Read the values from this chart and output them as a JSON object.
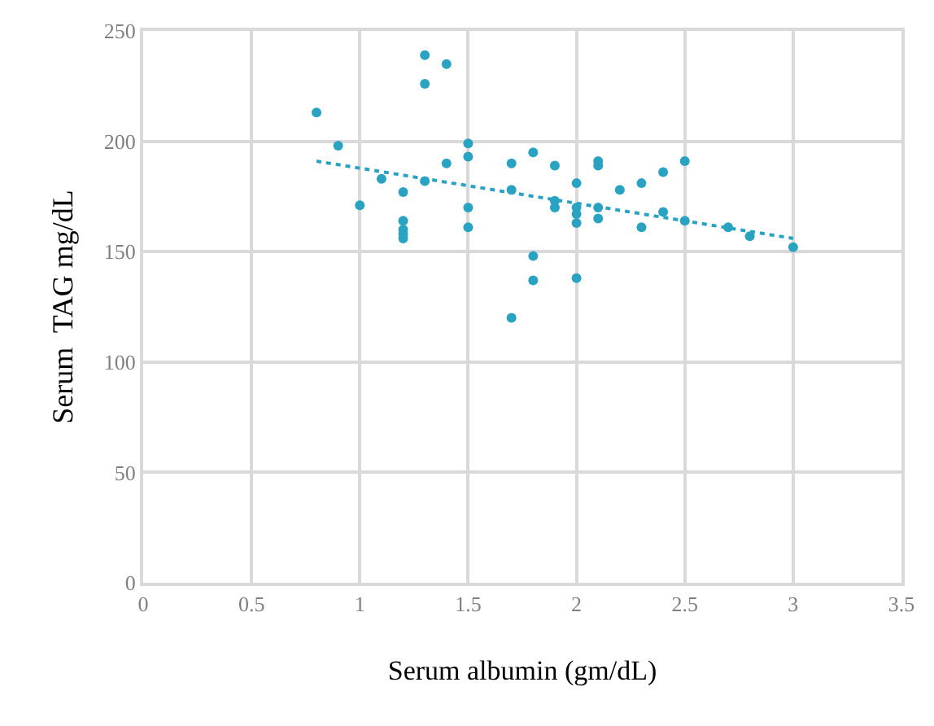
{
  "chart_data": {
    "type": "scatter",
    "xlabel": "Serum albumin (gm/dL)",
    "ylabel": "Serum  TAG mg/dL",
    "xlim": [
      0,
      3.5
    ],
    "xticks": [
      0,
      0.5,
      1,
      1.5,
      2,
      2.5,
      3,
      3.5
    ],
    "ylim": [
      0,
      250
    ],
    "yticks": [
      0,
      50,
      100,
      150,
      200,
      250
    ],
    "grid": true,
    "series": [
      {
        "color": "#2aa3c2",
        "marker": "circle",
        "x": [
          0.8,
          0.9,
          1.0,
          1.1,
          1.2,
          1.2,
          1.2,
          1.2,
          1.2,
          1.3,
          1.3,
          1.3,
          1.4,
          1.4,
          1.5,
          1.5,
          1.5,
          1.5,
          1.7,
          1.7,
          1.7,
          1.8,
          1.8,
          1.8,
          1.9,
          1.9,
          1.9,
          2.0,
          2.0,
          2.0,
          2.0,
          2.0,
          2.1,
          2.1,
          2.1,
          2.1,
          2.2,
          2.3,
          2.3,
          2.4,
          2.4,
          2.5,
          2.5,
          2.7,
          2.8,
          3.0
        ],
        "values": [
          213,
          198,
          171,
          183,
          177,
          164,
          160,
          158,
          156,
          239,
          226,
          182,
          235,
          190,
          199,
          193,
          170,
          161,
          190,
          178,
          120,
          195,
          148,
          137,
          189,
          173,
          170,
          181,
          170,
          167,
          163,
          138,
          191,
          189,
          170,
          165,
          178,
          181,
          161,
          186,
          168,
          191,
          164,
          161,
          157,
          152
        ]
      },
      {
        "type": "line",
        "color": "#2aa3c2",
        "line_style": "dotted",
        "marker": "none",
        "x": [
          0.8,
          3.0
        ],
        "values": [
          191,
          156
        ]
      }
    ]
  }
}
